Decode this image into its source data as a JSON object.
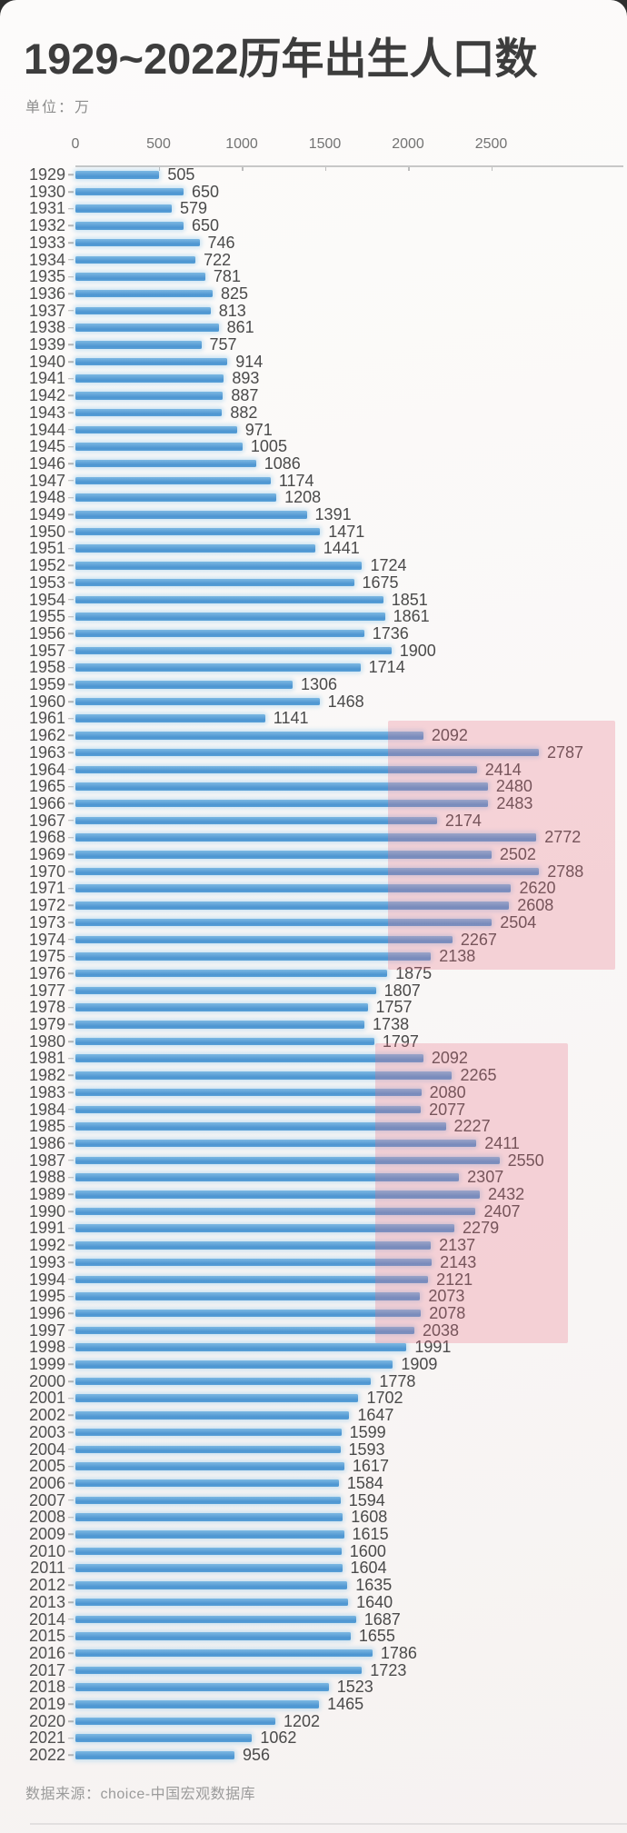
{
  "page": {
    "unit_label": "单位：万",
    "source": "数据来源：choice-中国宏观数据库"
  },
  "chart_data": {
    "type": "bar",
    "orientation": "horizontal",
    "title": "1929~2022历年出生人口数",
    "unit": "万",
    "xlabel": "",
    "ylabel": "",
    "x_ticks": [
      0,
      500,
      1000,
      1500,
      2000,
      2500
    ],
    "x_max": 3300,
    "grid": false,
    "legend": "none",
    "bar_color": "#58a0d7",
    "highlight_color": "rgba(233,113,133,0.28)",
    "categories": [
      1929,
      1930,
      1931,
      1932,
      1933,
      1934,
      1935,
      1936,
      1937,
      1938,
      1939,
      1940,
      1941,
      1942,
      1943,
      1944,
      1945,
      1946,
      1947,
      1948,
      1949,
      1950,
      1951,
      1952,
      1953,
      1954,
      1955,
      1956,
      1957,
      1958,
      1959,
      1960,
      1961,
      1962,
      1963,
      1964,
      1965,
      1966,
      1967,
      1968,
      1969,
      1970,
      1971,
      1972,
      1973,
      1974,
      1975,
      1976,
      1977,
      1978,
      1979,
      1980,
      1981,
      1982,
      1983,
      1984,
      1985,
      1986,
      1987,
      1988,
      1989,
      1990,
      1991,
      1992,
      1993,
      1994,
      1995,
      1996,
      1997,
      1998,
      1999,
      2000,
      2001,
      2002,
      2003,
      2004,
      2005,
      2006,
      2007,
      2008,
      2009,
      2010,
      2011,
      2012,
      2013,
      2014,
      2015,
      2016,
      2017,
      2018,
      2019,
      2020,
      2021,
      2022
    ],
    "values": [
      505,
      650,
      579,
      650,
      746,
      722,
      781,
      825,
      813,
      861,
      757,
      914,
      893,
      887,
      882,
      971,
      1005,
      1086,
      1174,
      1208,
      1391,
      1471,
      1441,
      1724,
      1675,
      1851,
      1861,
      1736,
      1900,
      1714,
      1306,
      1468,
      1141,
      2092,
      2787,
      2414,
      2480,
      2483,
      2174,
      2772,
      2502,
      2788,
      2620,
      2608,
      2504,
      2267,
      2138,
      1875,
      1807,
      1757,
      1738,
      1797,
      2092,
      2265,
      2080,
      2077,
      2227,
      2411,
      2550,
      2307,
      2432,
      2407,
      2279,
      2137,
      2143,
      2121,
      2073,
      2078,
      2038,
      1991,
      1909,
      1778,
      1702,
      1647,
      1599,
      1593,
      1617,
      1584,
      1594,
      1608,
      1615,
      1600,
      1604,
      1635,
      1640,
      1687,
      1655,
      1786,
      1723,
      1523,
      1465,
      1202,
      1062,
      956
    ],
    "highlights": [
      {
        "label": "baby-boom-1962-1975",
        "year_start": 1962,
        "year_end": 1975,
        "value_range": [
          1880,
          3246
        ]
      },
      {
        "label": "baby-boom-1981-1997",
        "year_start": 1981,
        "year_end": 1997,
        "value_range": [
          1803,
          2962
        ]
      }
    ]
  }
}
